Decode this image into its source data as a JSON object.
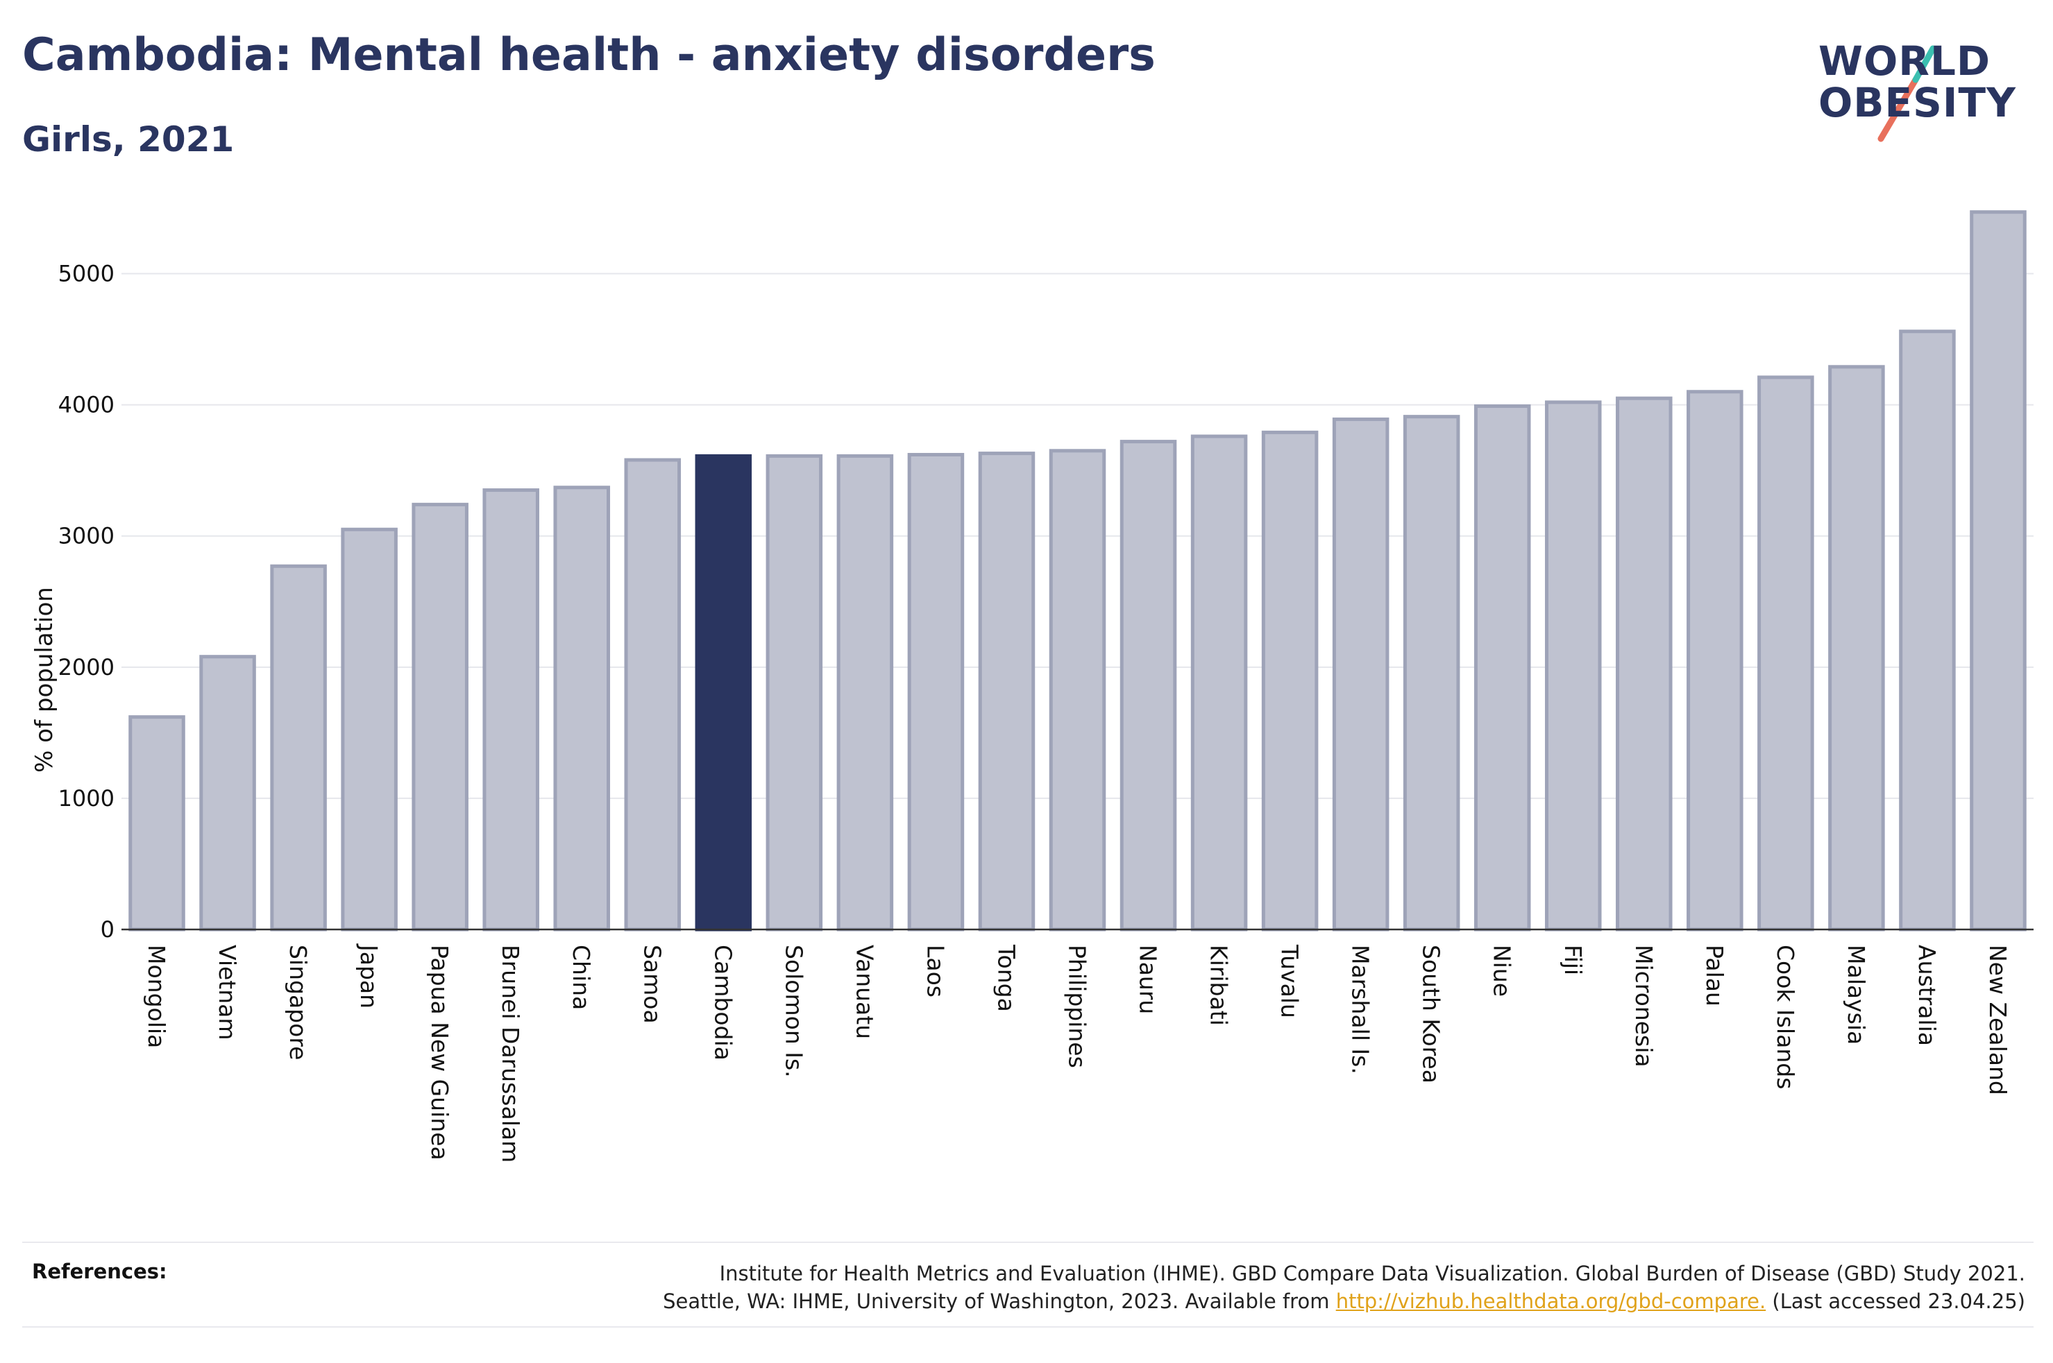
{
  "header": {
    "title": "Cambodia: Mental health - anxiety disorders",
    "subtitle": "Girls, 2021"
  },
  "logo": {
    "line1": "WORLD",
    "line2": "OBESITY",
    "brand_color": "#2a3560",
    "slash_colors": [
      "#3bbfb0",
      "#e8705c"
    ]
  },
  "chart_data": {
    "type": "bar",
    "ylabel": "% of population",
    "xlabel": "",
    "ylim": [
      0,
      5500
    ],
    "yticks": [
      0,
      1000,
      2000,
      3000,
      4000,
      5000
    ],
    "grid": true,
    "highlight": "Cambodia",
    "bar_color": "#bfc2d0",
    "bar_edge_color": "#9ea3b8",
    "highlight_color": "#2a3560",
    "categories": [
      "Mongolia",
      "Vietnam",
      "Singapore",
      "Japan",
      "Papua New Guinea",
      "Brunei Darussalam",
      "China",
      "Samoa",
      "Cambodia",
      "Solomon Is.",
      "Vanuatu",
      "Laos",
      "Tonga",
      "Philippines",
      "Nauru",
      "Kiribati",
      "Tuvalu",
      "Marshall Is.",
      "South Korea",
      "Niue",
      "Fiji",
      "Micronesia",
      "Palau",
      "Cook Islands",
      "Malaysia",
      "Australia",
      "New Zealand"
    ],
    "values": [
      1620,
      2080,
      2770,
      3050,
      3240,
      3350,
      3370,
      3580,
      3610,
      3610,
      3610,
      3620,
      3630,
      3650,
      3720,
      3760,
      3790,
      3890,
      3910,
      3990,
      4020,
      4050,
      4100,
      4210,
      4290,
      4560,
      5470
    ]
  },
  "references": {
    "label": "References:",
    "line1": "Institute for Health Metrics and Evaluation (IHME). GBD Compare Data Visualization. Global Burden of Disease (GBD) Study 2021.",
    "line2_prefix": "Seattle, WA: IHME, University of Washington, 2023. Available from ",
    "link": "http://vizhub.healthdata.org/gbd-compare.",
    "line2_suffix": " (Last accessed 23.04.25)"
  }
}
